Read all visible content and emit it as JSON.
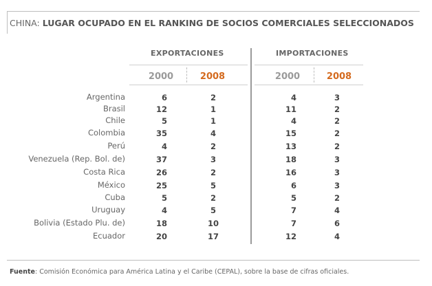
{
  "title": {
    "lead": "CHINA:",
    "rest": "LUGAR OCUPADO EN EL RANKING DE SOCIOS COMERCIALES SELECCIONADOS"
  },
  "groups": {
    "exports": "EXPORTACIONES",
    "imports": "IMPORTACIONES"
  },
  "years": {
    "exports_old": "2000",
    "exports_new": "2008",
    "imports_old": "2000",
    "imports_new": "2008"
  },
  "colors": {
    "highlight": "#d46a1e",
    "muted": "#9a9a9a"
  },
  "rows": [
    {
      "country": "Argentina",
      "exp2000": "6",
      "exp2008": "2",
      "imp2000": "4",
      "imp2008": "3"
    },
    {
      "country": "Brasil",
      "exp2000": "12",
      "exp2008": "1",
      "imp2000": "11",
      "imp2008": "2"
    },
    {
      "country": "Chile",
      "exp2000": "5",
      "exp2008": "1",
      "imp2000": "4",
      "imp2008": "2"
    },
    {
      "country": "Colombia",
      "exp2000": "35",
      "exp2008": "4",
      "imp2000": "15",
      "imp2008": "2"
    },
    {
      "country": "Perú",
      "exp2000": "4",
      "exp2008": "2",
      "imp2000": "13",
      "imp2008": "2"
    },
    {
      "country": "Venezuela (Rep. Bol. de)",
      "exp2000": "37",
      "exp2008": "3",
      "imp2000": "18",
      "imp2008": "3"
    },
    {
      "country": "Costa Rica",
      "exp2000": "26",
      "exp2008": "2",
      "imp2000": "16",
      "imp2008": "3"
    },
    {
      "country": "México",
      "exp2000": "25",
      "exp2008": "5",
      "imp2000": "6",
      "imp2008": "3"
    },
    {
      "country": "Cuba",
      "exp2000": "5",
      "exp2008": "2",
      "imp2000": "5",
      "imp2008": "2"
    },
    {
      "country": "Uruguay",
      "exp2000": "4",
      "exp2008": "5",
      "imp2000": "7",
      "imp2008": "4"
    },
    {
      "country": "Bolivia (Estado Plu. de)",
      "exp2000": "18",
      "exp2008": "10",
      "imp2000": "7",
      "imp2008": "6"
    },
    {
      "country": "Ecuador",
      "exp2000": "20",
      "exp2008": "17",
      "imp2000": "12",
      "imp2008": "4"
    }
  ],
  "footer": {
    "label": "Fuente",
    "text": ":  Comisión Económica para América Latina y el Caribe (CEPAL), sobre la base de cifras oficiales."
  }
}
